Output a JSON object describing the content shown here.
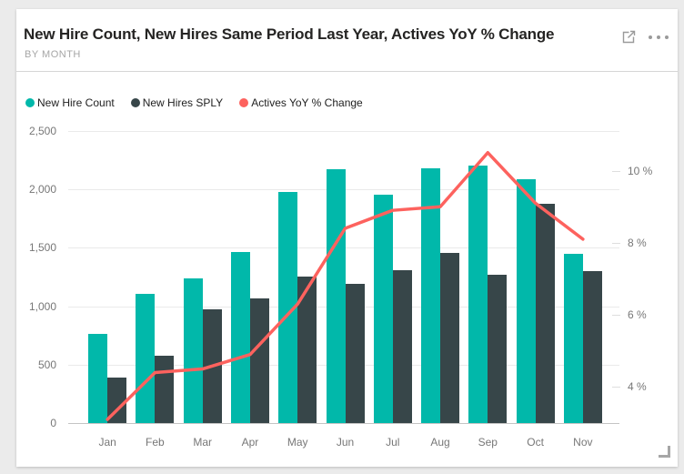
{
  "header": {
    "title": "New Hire Count, New Hires Same Period Last Year, Actives YoY % Change",
    "subtitle": "BY MONTH",
    "icons": [
      {
        "name": "focus-mode-icon"
      },
      {
        "name": "more-options-icon"
      }
    ]
  },
  "legend": {
    "items": [
      {
        "label": "New Hire Count",
        "color": "#01B8AA"
      },
      {
        "label": "New Hires SPLY",
        "color": "#374649"
      },
      {
        "label": "Actives YoY % Change",
        "color": "#FD625E"
      }
    ]
  },
  "chart_data": {
    "type": "combo",
    "title": "New Hire Count, New Hires Same Period Last Year, Actives YoY % Change",
    "subtitle": "BY MONTH",
    "categories": [
      "Jan",
      "Feb",
      "Mar",
      "Apr",
      "May",
      "Jun",
      "Jul",
      "Aug",
      "Sep",
      "Oct",
      "Nov"
    ],
    "series": [
      {
        "name": "New Hire Count",
        "type": "bar",
        "axis": "left",
        "color": "#01B8AA",
        "values": [
          765,
          1105,
          1240,
          1465,
          1980,
          2175,
          1955,
          2180,
          2205,
          2090,
          1450
        ]
      },
      {
        "name": "New Hires SPLY",
        "type": "bar",
        "axis": "left",
        "color": "#374649",
        "values": [
          390,
          575,
          975,
          1065,
          1255,
          1190,
          1310,
          1455,
          1270,
          1880,
          1300
        ]
      },
      {
        "name": "Actives YoY % Change",
        "type": "line",
        "axis": "right",
        "color": "#FD625E",
        "values": [
          3.1,
          4.4,
          4.5,
          4.9,
          6.3,
          8.4,
          8.9,
          9.0,
          10.5,
          9.1,
          8.1
        ]
      }
    ],
    "left_axis": {
      "min": 0,
      "max": 2500,
      "ticks": [
        0,
        500,
        1000,
        1500,
        2000,
        2500
      ],
      "tick_labels": [
        "0",
        "500",
        "1,000",
        "1,500",
        "2,000",
        "2,500"
      ]
    },
    "right_axis": {
      "min": 3.0,
      "max": 11.1,
      "ticks": [
        4,
        6,
        8,
        10
      ],
      "tick_labels": [
        "4 %",
        "6 %",
        "8 %",
        "10 %"
      ]
    },
    "legend_position": "top",
    "grid": true
  }
}
